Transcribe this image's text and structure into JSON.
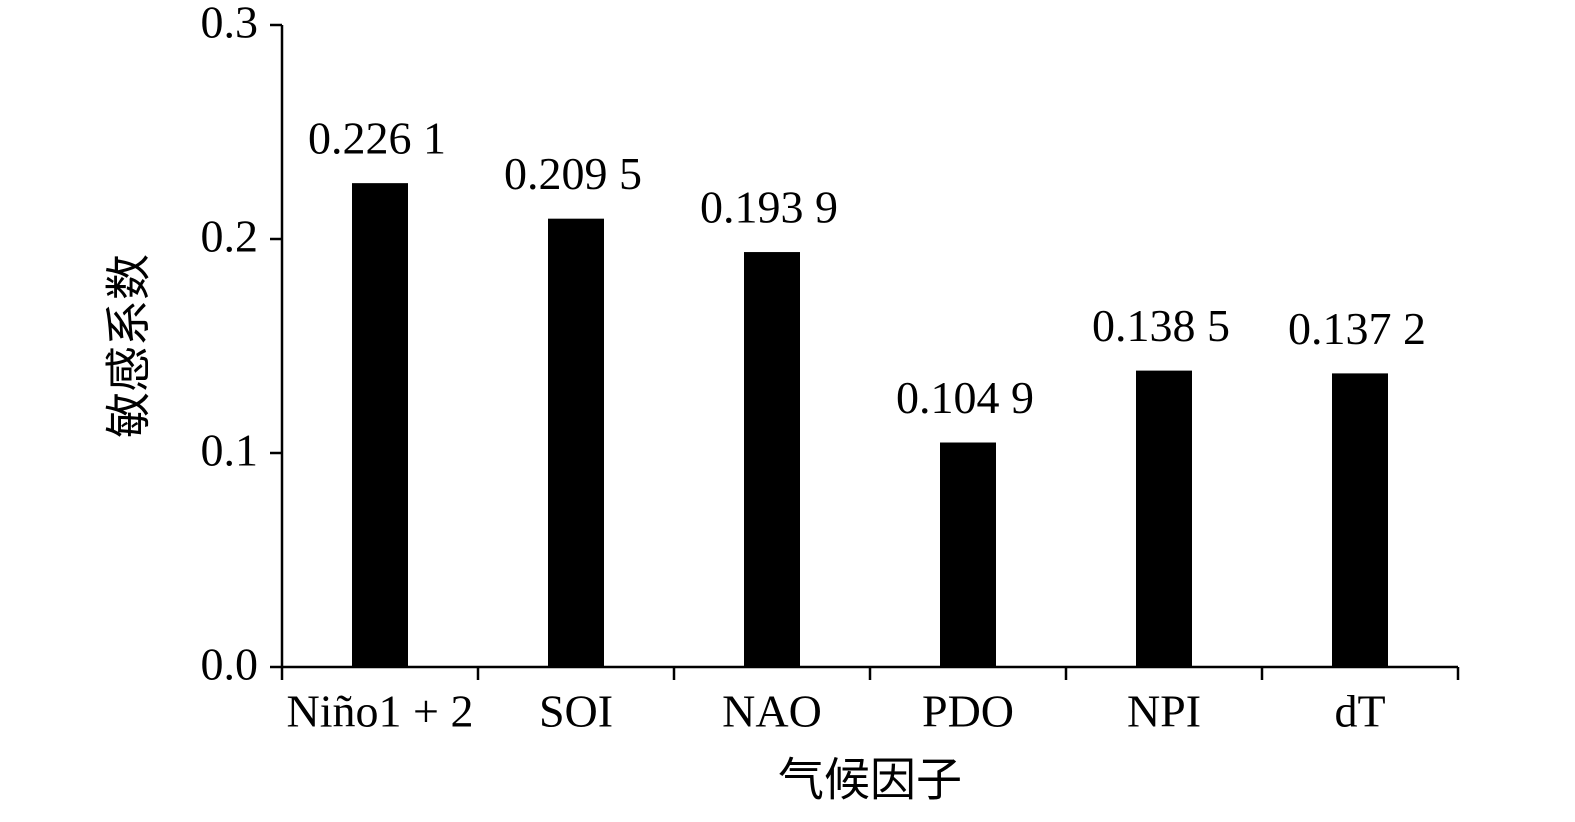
{
  "chart_data": {
    "type": "bar",
    "x_label": "气候因子",
    "y_label": "敏感系数",
    "categories": [
      "Niño1 + 2",
      "SOI",
      "NAO",
      "PDO",
      "NPI",
      "dT"
    ],
    "values": [
      0.2261,
      0.2095,
      0.1939,
      0.1049,
      0.1385,
      0.1372
    ],
    "value_labels": [
      "0.226 1",
      "0.209 5",
      "0.193 9",
      "0.104 9",
      "0.138 5",
      "0.137 2"
    ],
    "color": "#000000",
    "ylim": [
      0,
      0.3
    ],
    "yticks": [
      {
        "value": 0,
        "label": "0.0"
      },
      0.1,
      0.2,
      0.3
    ],
    "grid": false
  }
}
